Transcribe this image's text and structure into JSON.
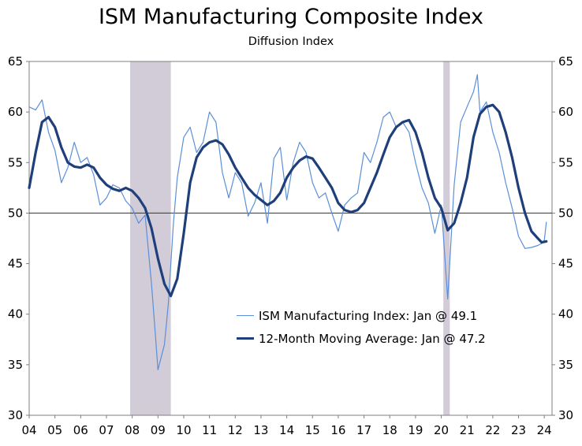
{
  "chart_data": {
    "type": "line",
    "title": "ISM Manufacturing Composite Index",
    "subtitle": "Diffusion Index",
    "xlabel": "",
    "ylabel": "",
    "ylim": [
      30,
      65
    ],
    "yticks": [
      30,
      35,
      40,
      45,
      50,
      55,
      60,
      65
    ],
    "xlim": [
      2004.0,
      2024.3
    ],
    "xtick_labels": [
      "04",
      "05",
      "06",
      "07",
      "08",
      "09",
      "10",
      "11",
      "12",
      "13",
      "14",
      "15",
      "16",
      "17",
      "18",
      "19",
      "20",
      "21",
      "22",
      "23",
      "24"
    ],
    "reference_line": 50,
    "recessions": [
      [
        2007.92,
        2009.5
      ],
      [
        2020.08,
        2020.33
      ]
    ],
    "grid": false,
    "legend_position": "bottom-right",
    "series": [
      {
        "name": "ISM Manufacturing Index: Jan @ 49.1",
        "color": "#5b8fd9",
        "points": [
          [
            2004.0,
            60.5
          ],
          [
            2004.25,
            60.2
          ],
          [
            2004.5,
            61.2
          ],
          [
            2004.75,
            58.0
          ],
          [
            2005.0,
            56.2
          ],
          [
            2005.25,
            53.0
          ],
          [
            2005.5,
            54.5
          ],
          [
            2005.75,
            57.0
          ],
          [
            2006.0,
            55.0
          ],
          [
            2006.25,
            55.5
          ],
          [
            2006.5,
            53.8
          ],
          [
            2006.75,
            50.8
          ],
          [
            2007.0,
            51.5
          ],
          [
            2007.25,
            52.8
          ],
          [
            2007.5,
            52.5
          ],
          [
            2007.75,
            51.2
          ],
          [
            2008.0,
            50.5
          ],
          [
            2008.25,
            49.0
          ],
          [
            2008.5,
            49.8
          ],
          [
            2008.75,
            43.0
          ],
          [
            2008.9,
            38.0
          ],
          [
            2009.0,
            34.5
          ],
          [
            2009.25,
            37.0
          ],
          [
            2009.4,
            41.0
          ],
          [
            2009.6,
            49.0
          ],
          [
            2009.75,
            53.5
          ],
          [
            2010.0,
            57.5
          ],
          [
            2010.25,
            58.5
          ],
          [
            2010.5,
            56.0
          ],
          [
            2010.75,
            57.0
          ],
          [
            2011.0,
            60.0
          ],
          [
            2011.25,
            59.0
          ],
          [
            2011.5,
            54.0
          ],
          [
            2011.75,
            51.5
          ],
          [
            2012.0,
            54.0
          ],
          [
            2012.25,
            53.0
          ],
          [
            2012.5,
            49.7
          ],
          [
            2012.75,
            51.0
          ],
          [
            2013.0,
            53.0
          ],
          [
            2013.25,
            49.0
          ],
          [
            2013.5,
            55.4
          ],
          [
            2013.75,
            56.5
          ],
          [
            2014.0,
            51.3
          ],
          [
            2014.25,
            55.0
          ],
          [
            2014.5,
            57.0
          ],
          [
            2014.75,
            56.0
          ],
          [
            2015.0,
            53.0
          ],
          [
            2015.25,
            51.5
          ],
          [
            2015.5,
            52.0
          ],
          [
            2015.75,
            50.0
          ],
          [
            2016.0,
            48.2
          ],
          [
            2016.25,
            50.8
          ],
          [
            2016.5,
            51.5
          ],
          [
            2016.75,
            52.0
          ],
          [
            2017.0,
            56.0
          ],
          [
            2017.25,
            55.0
          ],
          [
            2017.5,
            57.0
          ],
          [
            2017.75,
            59.5
          ],
          [
            2018.0,
            60.0
          ],
          [
            2018.25,
            58.5
          ],
          [
            2018.5,
            59.0
          ],
          [
            2018.75,
            58.0
          ],
          [
            2019.0,
            55.0
          ],
          [
            2019.25,
            52.5
          ],
          [
            2019.5,
            51.0
          ],
          [
            2019.75,
            48.0
          ],
          [
            2020.0,
            50.8
          ],
          [
            2020.25,
            41.5
          ],
          [
            2020.5,
            52.8
          ],
          [
            2020.75,
            59.0
          ],
          [
            2021.0,
            60.5
          ],
          [
            2021.25,
            62.0
          ],
          [
            2021.4,
            63.7
          ],
          [
            2021.5,
            60.0
          ],
          [
            2021.75,
            61.0
          ],
          [
            2022.0,
            58.0
          ],
          [
            2022.25,
            56.0
          ],
          [
            2022.5,
            53.0
          ],
          [
            2022.75,
            50.5
          ],
          [
            2023.0,
            47.7
          ],
          [
            2023.25,
            46.5
          ],
          [
            2023.5,
            46.6
          ],
          [
            2023.75,
            46.8
          ],
          [
            2023.9,
            47.0
          ],
          [
            2024.0,
            47.3
          ],
          [
            2024.08,
            49.1
          ]
        ]
      },
      {
        "name": "12-Month Moving Average: Jan @ 47.2",
        "color": "#1f3f7a",
        "points": [
          [
            2004.0,
            52.5
          ],
          [
            2004.25,
            56.0
          ],
          [
            2004.5,
            59.0
          ],
          [
            2004.75,
            59.5
          ],
          [
            2005.0,
            58.5
          ],
          [
            2005.25,
            56.5
          ],
          [
            2005.5,
            55.0
          ],
          [
            2005.75,
            54.6
          ],
          [
            2006.0,
            54.5
          ],
          [
            2006.25,
            54.8
          ],
          [
            2006.5,
            54.5
          ],
          [
            2006.75,
            53.5
          ],
          [
            2007.0,
            52.8
          ],
          [
            2007.25,
            52.4
          ],
          [
            2007.5,
            52.2
          ],
          [
            2007.75,
            52.5
          ],
          [
            2008.0,
            52.2
          ],
          [
            2008.25,
            51.5
          ],
          [
            2008.5,
            50.5
          ],
          [
            2008.75,
            48.5
          ],
          [
            2009.0,
            45.5
          ],
          [
            2009.25,
            43.0
          ],
          [
            2009.5,
            41.8
          ],
          [
            2009.75,
            43.5
          ],
          [
            2010.0,
            48.0
          ],
          [
            2010.25,
            53.0
          ],
          [
            2010.5,
            55.5
          ],
          [
            2010.75,
            56.5
          ],
          [
            2011.0,
            57.0
          ],
          [
            2011.25,
            57.2
          ],
          [
            2011.5,
            56.8
          ],
          [
            2011.75,
            55.8
          ],
          [
            2012.0,
            54.5
          ],
          [
            2012.25,
            53.5
          ],
          [
            2012.5,
            52.5
          ],
          [
            2012.75,
            51.8
          ],
          [
            2013.0,
            51.3
          ],
          [
            2013.25,
            50.8
          ],
          [
            2013.5,
            51.2
          ],
          [
            2013.75,
            52.0
          ],
          [
            2014.0,
            53.5
          ],
          [
            2014.25,
            54.5
          ],
          [
            2014.5,
            55.2
          ],
          [
            2014.75,
            55.6
          ],
          [
            2015.0,
            55.4
          ],
          [
            2015.25,
            54.5
          ],
          [
            2015.5,
            53.5
          ],
          [
            2015.75,
            52.5
          ],
          [
            2016.0,
            51.0
          ],
          [
            2016.25,
            50.3
          ],
          [
            2016.5,
            50.1
          ],
          [
            2016.75,
            50.3
          ],
          [
            2017.0,
            51.0
          ],
          [
            2017.25,
            52.5
          ],
          [
            2017.5,
            54.0
          ],
          [
            2017.75,
            55.8
          ],
          [
            2018.0,
            57.5
          ],
          [
            2018.25,
            58.5
          ],
          [
            2018.5,
            59.0
          ],
          [
            2018.75,
            59.2
          ],
          [
            2019.0,
            58.0
          ],
          [
            2019.25,
            56.0
          ],
          [
            2019.5,
            53.5
          ],
          [
            2019.75,
            51.5
          ],
          [
            2020.0,
            50.5
          ],
          [
            2020.25,
            48.3
          ],
          [
            2020.5,
            49.0
          ],
          [
            2020.75,
            51.0
          ],
          [
            2021.0,
            53.5
          ],
          [
            2021.25,
            57.5
          ],
          [
            2021.5,
            59.8
          ],
          [
            2021.75,
            60.5
          ],
          [
            2022.0,
            60.7
          ],
          [
            2022.25,
            60.0
          ],
          [
            2022.5,
            58.0
          ],
          [
            2022.75,
            55.5
          ],
          [
            2023.0,
            52.5
          ],
          [
            2023.25,
            50.0
          ],
          [
            2023.5,
            48.2
          ],
          [
            2023.75,
            47.5
          ],
          [
            2023.9,
            47.1
          ],
          [
            2024.08,
            47.2
          ]
        ]
      }
    ]
  }
}
